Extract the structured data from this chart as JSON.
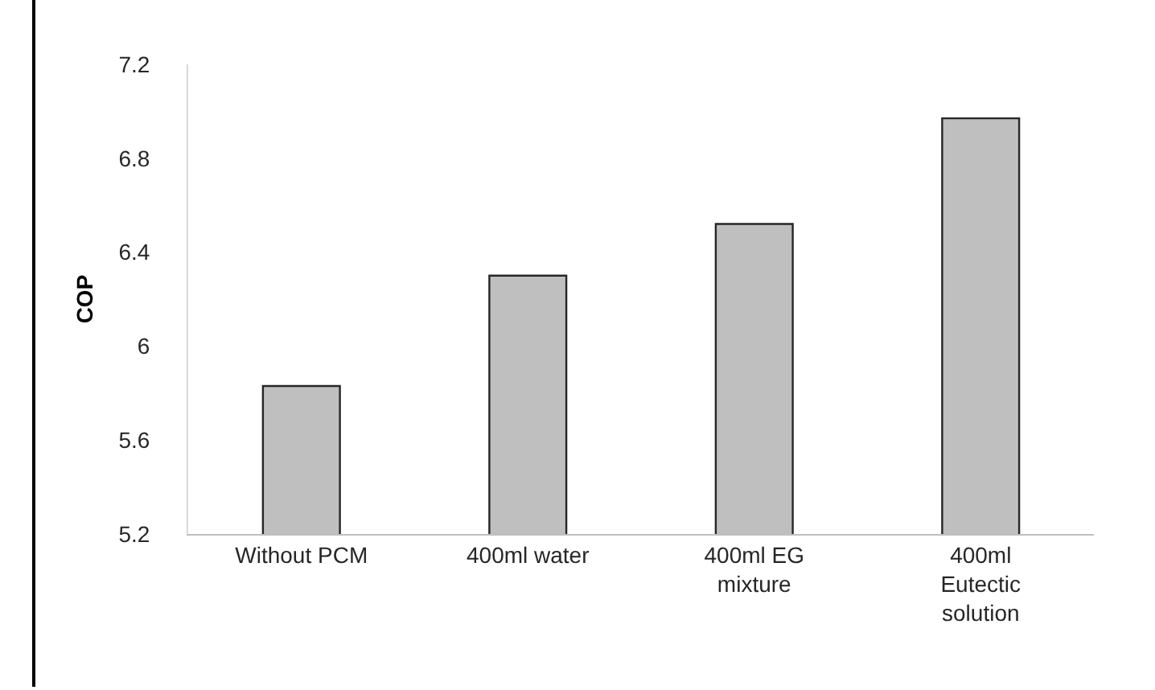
{
  "chart_data": {
    "type": "bar",
    "ylabel": "COP",
    "categories": [
      "Without PCM",
      "400ml water",
      "400ml EG mixture",
      "400ml Eutectic solution"
    ],
    "values": [
      5.83,
      6.3,
      6.52,
      6.97
    ],
    "color": "#bfbfbf",
    "ylim": [
      5.2,
      7.2
    ],
    "yticks": [
      5.2,
      5.6,
      6,
      6.4,
      6.8,
      7.2
    ],
    "grid": false
  }
}
